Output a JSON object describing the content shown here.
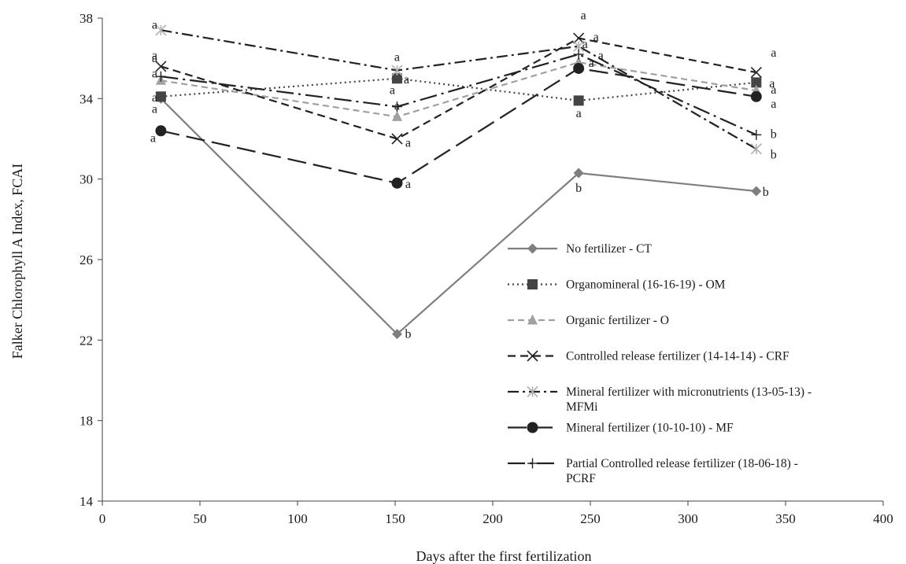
{
  "chart_data": {
    "type": "line",
    "title": "",
    "xlabel": "Days after the first fertilization",
    "ylabel": "Falker Chlorophyll A Index, FCAI",
    "xlim": [
      0,
      400
    ],
    "ylim": [
      14,
      38
    ],
    "xticks": [
      0,
      50,
      100,
      150,
      200,
      250,
      300,
      350,
      400
    ],
    "yticks": [
      14,
      18,
      22,
      26,
      30,
      34,
      38
    ],
    "grid": false,
    "legend_position": "center-right",
    "x": [
      30,
      151,
      244,
      335
    ],
    "series": [
      {
        "name": "No fertilizer - CT",
        "values": [
          34.0,
          22.3,
          30.3,
          29.4
        ],
        "letters": [
          "a",
          "b",
          "b",
          "b"
        ],
        "color": "#7f7f7f",
        "dash": "",
        "marker": "diamond"
      },
      {
        "name": "Organomineral (16-16-19) - OM",
        "values": [
          34.1,
          35.0,
          33.9,
          34.8
        ],
        "letters": [
          "a",
          "a",
          "a",
          "a"
        ],
        "color": "#444444",
        "dash": "2 4",
        "marker": "square"
      },
      {
        "name": "Organic fertilizer - O",
        "values": [
          34.9,
          33.1,
          35.8,
          34.4
        ],
        "letters": [
          "a",
          "a",
          "a",
          "a"
        ],
        "color": "#a0a0a0",
        "dash": "8 5",
        "marker": "triangle"
      },
      {
        "name": "Controlled release fertilizer (14-14-14) - CRF",
        "values": [
          35.6,
          32.0,
          37.0,
          35.3
        ],
        "letters": [
          "a",
          "a",
          "a",
          "a"
        ],
        "color": "#222222",
        "dash": "10 6",
        "marker": "x"
      },
      {
        "name": "Mineral fertilizer with micronutrients (13-05-13) - MFMi",
        "values": [
          37.4,
          35.4,
          36.6,
          31.5
        ],
        "letters": [
          "a",
          "a",
          "a",
          "b"
        ],
        "color": "#222222",
        "dash": "14 5 3 5",
        "marker": "asterisk"
      },
      {
        "name": "Mineral fertilizer (10-10-10) - MF",
        "values": [
          32.4,
          29.8,
          35.5,
          34.1
        ],
        "letters": [
          "a",
          "a",
          "a",
          "a"
        ],
        "color": "#222222",
        "dash": "24 9",
        "marker": "circle"
      },
      {
        "name": "Partial Controlled release fertilizer (18-06-18) - PCRF",
        "values": [
          35.1,
          33.6,
          36.2,
          32.2
        ],
        "letters": [
          "a",
          "a",
          "a",
          "b"
        ],
        "color": "#222222",
        "dash": "22 6 3 6",
        "marker": "plus"
      }
    ]
  }
}
